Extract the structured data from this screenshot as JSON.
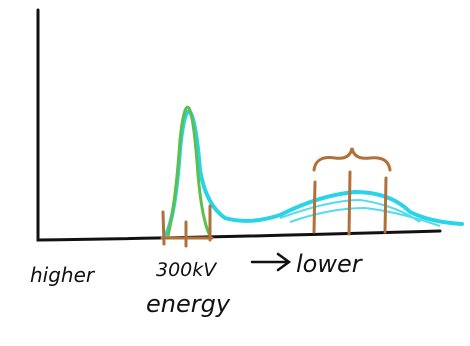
{
  "labels": {
    "higher": "higher",
    "peak": "300kV",
    "lower": "lower",
    "energy": "energy"
  }
}
